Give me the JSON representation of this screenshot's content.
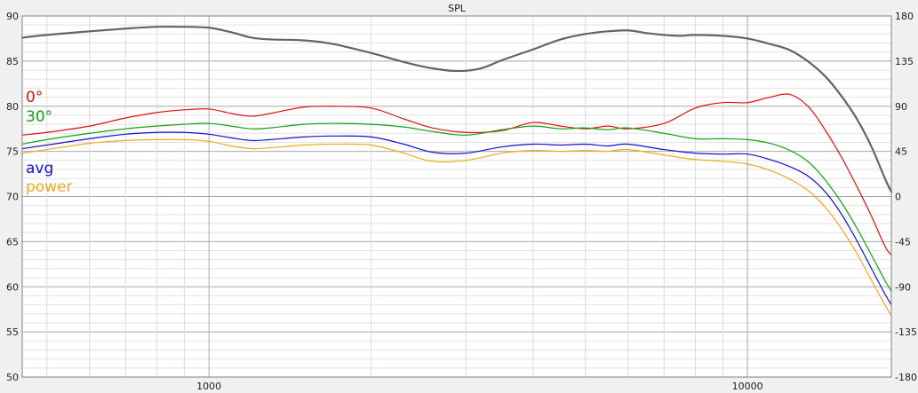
{
  "chart_data": {
    "type": "line",
    "title": "SPL",
    "xlabel": "",
    "ylabel": "",
    "x_scale": "log",
    "xlim": [
      450,
      18500
    ],
    "ylim": [
      50,
      90
    ],
    "y2lim": [
      -180,
      180
    ],
    "x_tick_labels": [
      "1000",
      "10000"
    ],
    "y_tick_labels": [
      "90",
      "85",
      "80",
      "75",
      "70",
      "65",
      "60",
      "55",
      "50"
    ],
    "y2_tick_labels": [
      "180",
      "135",
      "90",
      "45",
      "0",
      "-45",
      "-90",
      "-135",
      "-180"
    ],
    "grid": true,
    "legend_position": "left",
    "series": [
      {
        "name": "",
        "axis": "left",
        "color": "#646464",
        "x": [
          450,
          500,
          600,
          700,
          800,
          900,
          1000,
          1100,
          1200,
          1300,
          1500,
          1700,
          2000,
          2300,
          2600,
          2900,
          3200,
          3500,
          4000,
          4500,
          5000,
          5500,
          6000,
          6500,
          7000,
          7500,
          8000,
          9000,
          10000,
          11000,
          12000,
          13000,
          14000,
          15000,
          16000,
          17000,
          18000,
          18500
        ],
        "y": [
          87.6,
          87.9,
          88.3,
          88.6,
          88.8,
          88.8,
          88.7,
          88.2,
          87.6,
          87.4,
          87.3,
          86.9,
          85.9,
          84.9,
          84.2,
          83.9,
          84.2,
          85.1,
          86.3,
          87.4,
          88.0,
          88.3,
          88.4,
          88.1,
          87.9,
          87.8,
          87.9,
          87.8,
          87.5,
          86.9,
          86.2,
          84.9,
          83.2,
          81.0,
          78.5,
          75.5,
          72.0,
          70.5
        ]
      },
      {
        "name": "0°",
        "axis": "left",
        "color": "#e01010",
        "x": [
          450,
          500,
          600,
          700,
          800,
          900,
          1000,
          1100,
          1200,
          1300,
          1500,
          1700,
          2000,
          2300,
          2600,
          3000,
          3500,
          4000,
          4500,
          5000,
          5500,
          6000,
          7000,
          8000,
          9000,
          10000,
          11000,
          12000,
          13000,
          14000,
          15000,
          16000,
          17000,
          18000,
          18500
        ],
        "y": [
          76.8,
          77.1,
          77.8,
          78.7,
          79.3,
          79.6,
          79.7,
          79.2,
          78.9,
          79.2,
          79.9,
          80.0,
          79.8,
          78.6,
          77.6,
          77.1,
          77.3,
          78.2,
          77.8,
          77.5,
          77.8,
          77.5,
          78.1,
          79.8,
          80.4,
          80.4,
          81.0,
          81.3,
          79.9,
          77.2,
          74.2,
          71.0,
          67.8,
          64.5,
          63.5
        ]
      },
      {
        "name": "30°",
        "axis": "left",
        "color": "#10a010",
        "x": [
          450,
          500,
          600,
          700,
          800,
          900,
          1000,
          1100,
          1200,
          1300,
          1500,
          1700,
          2000,
          2300,
          2600,
          3000,
          3500,
          4000,
          4500,
          5000,
          5500,
          6000,
          7000,
          8000,
          9000,
          10000,
          11000,
          12000,
          13000,
          14000,
          15000,
          16000,
          17000,
          18000,
          18500
        ],
        "y": [
          75.8,
          76.3,
          77.0,
          77.5,
          77.8,
          78.0,
          78.1,
          77.8,
          77.5,
          77.6,
          78.0,
          78.1,
          78.0,
          77.7,
          77.2,
          76.8,
          77.4,
          77.8,
          77.5,
          77.6,
          77.4,
          77.6,
          77.0,
          76.4,
          76.4,
          76.3,
          75.9,
          75.1,
          73.8,
          71.7,
          69.2,
          66.4,
          63.5,
          60.7,
          59.5
        ]
      },
      {
        "name": "avg",
        "axis": "left",
        "color": "#1010d0",
        "x": [
          450,
          500,
          600,
          700,
          800,
          900,
          1000,
          1100,
          1200,
          1300,
          1500,
          1700,
          2000,
          2300,
          2600,
          3000,
          3500,
          4000,
          4500,
          5000,
          5500,
          6000,
          7000,
          8000,
          9000,
          10000,
          11000,
          12000,
          13000,
          14000,
          15000,
          16000,
          17000,
          18000,
          18500
        ],
        "y": [
          75.3,
          75.7,
          76.4,
          76.9,
          77.1,
          77.1,
          76.9,
          76.5,
          76.2,
          76.3,
          76.6,
          76.7,
          76.6,
          75.8,
          74.9,
          74.8,
          75.5,
          75.8,
          75.7,
          75.8,
          75.6,
          75.8,
          75.2,
          74.8,
          74.7,
          74.7,
          74.1,
          73.3,
          72.2,
          70.4,
          67.9,
          65.0,
          62.0,
          59.2,
          58.0
        ]
      },
      {
        "name": "power",
        "axis": "left",
        "color": "#f0a820",
        "x": [
          450,
          500,
          600,
          700,
          800,
          900,
          1000,
          1100,
          1200,
          1300,
          1500,
          1700,
          2000,
          2300,
          2600,
          3000,
          3500,
          4000,
          4500,
          5000,
          5500,
          6000,
          7000,
          8000,
          9000,
          10000,
          11000,
          12000,
          13000,
          14000,
          15000,
          16000,
          17000,
          18000,
          18500
        ],
        "y": [
          74.8,
          75.2,
          75.9,
          76.2,
          76.3,
          76.3,
          76.1,
          75.6,
          75.3,
          75.4,
          75.7,
          75.8,
          75.7,
          74.8,
          73.9,
          74.0,
          74.8,
          75.1,
          75.0,
          75.1,
          75.0,
          75.2,
          74.6,
          74.1,
          73.9,
          73.6,
          72.9,
          71.9,
          70.6,
          68.7,
          66.3,
          63.6,
          60.7,
          58.0,
          56.8
        ]
      }
    ]
  }
}
